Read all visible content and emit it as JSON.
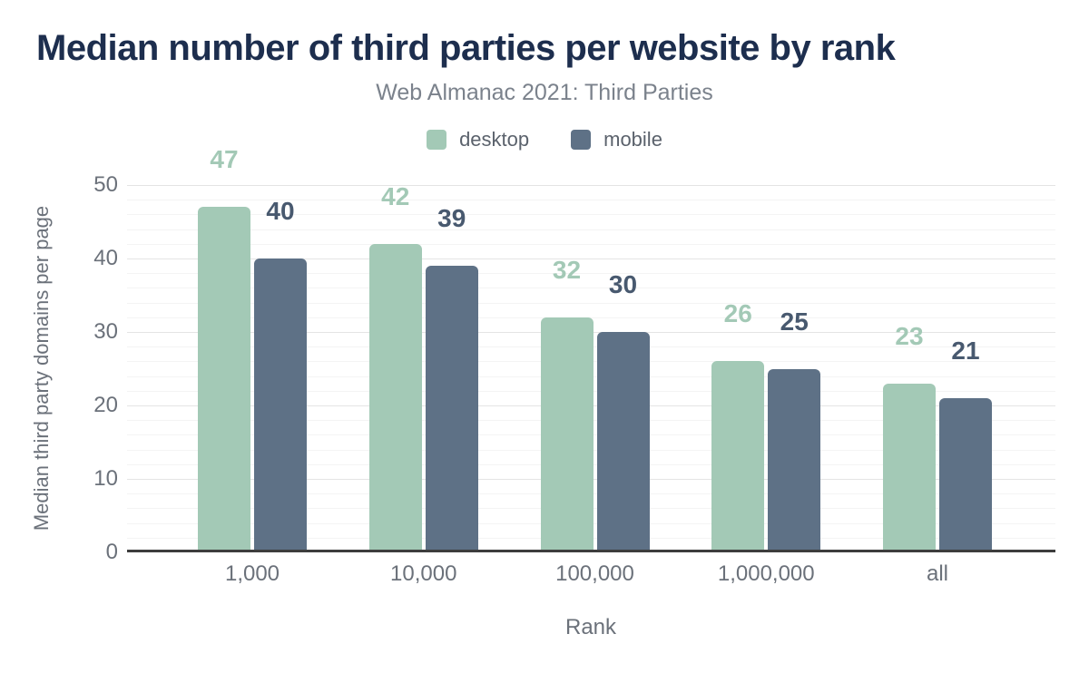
{
  "title": "Median number of third parties per website by rank",
  "subtitle": "Web Almanac 2021: Third Parties",
  "chart_data": {
    "type": "bar",
    "title": "Median number of third parties per website by rank",
    "subtitle": "Web Almanac 2021: Third Parties",
    "categories": [
      "1,000",
      "10,000",
      "100,000",
      "1,000,000",
      "all"
    ],
    "series": [
      {
        "name": "desktop",
        "color": "#a3c9b6",
        "label_color": "#a3c9b6",
        "values": [
          47,
          42,
          32,
          26,
          23
        ]
      },
      {
        "name": "mobile",
        "color": "#5e7186",
        "label_color": "#48596f",
        "values": [
          40,
          39,
          30,
          25,
          21
        ]
      }
    ],
    "xlabel": "Rank",
    "ylabel": "Median third party domains per page",
    "ylim": [
      0,
      50
    ],
    "yticks": [
      0,
      10,
      20,
      30,
      40,
      50
    ],
    "grid": {
      "major_step": 10,
      "minor_step": 2,
      "major_color": "#e4e4e4",
      "minor_color": "#f4f4f4"
    },
    "legend_position": "top-center",
    "data_labels": true,
    "axis_line_color": "#3d3d3d",
    "title_color": "#1d2e4e",
    "subtitle_color": "#7b828c",
    "tick_color": "#6b717a"
  }
}
